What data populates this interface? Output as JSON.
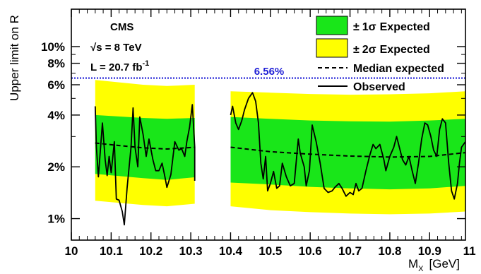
{
  "chart_data": {
    "type": "line",
    "x_axis": {
      "label": "M",
      "label_sub": "X",
      "unit": "[GeV]",
      "range": [
        10.0,
        10.99
      ],
      "ticks": [
        "10",
        "10.1",
        "10.2",
        "10.3",
        "10.4",
        "10.5",
        "10.6",
        "10.7",
        "10.8",
        "10.9",
        "11"
      ],
      "tick_values": [
        10.0,
        10.1,
        10.2,
        10.3,
        10.4,
        10.5,
        10.6,
        10.7,
        10.8,
        10.9,
        11.0
      ]
    },
    "y_axis": {
      "label": "Upper limit on R",
      "scale": "log",
      "range_percent": [
        0.75,
        16.5
      ],
      "ticks": [
        "1%",
        "2%",
        "4%",
        "6%",
        "8%",
        "10%"
      ],
      "tick_values": [
        1,
        2,
        4,
        6,
        8,
        10
      ]
    },
    "text_annotations": {
      "experiment": "CMS",
      "energy_prefix": "√s",
      "energy": " = 8 TeV",
      "lumi": "L  = 20.7 fb",
      "lumi_exp": "-1"
    },
    "reference_line": {
      "label": "6.56%",
      "value_percent": 6.56,
      "color": "#1f1fd6"
    },
    "legend": {
      "position": "top-right",
      "entries": [
        {
          "symbol": "±",
          "sigma": "1σ",
          "text": "Expected",
          "color": "#19e619"
        },
        {
          "symbol": "±",
          "sigma": "2σ",
          "text": "Expected",
          "color": "#ffff00"
        },
        {
          "text": "Median expected",
          "style": "dashed"
        },
        {
          "text": "Observed",
          "style": "solid"
        }
      ]
    },
    "segments": [
      {
        "x_range": [
          10.06,
          10.31
        ],
        "expected_median": [
          [
            10.06,
            2.75
          ],
          [
            10.12,
            2.66
          ],
          [
            10.18,
            2.58
          ],
          [
            10.24,
            2.54
          ],
          [
            10.31,
            2.6
          ]
        ],
        "band_1sigma": [
          [
            10.06,
            1.82,
            4.0
          ],
          [
            10.18,
            1.72,
            3.85
          ],
          [
            10.24,
            1.68,
            3.8
          ],
          [
            10.31,
            1.74,
            3.85
          ]
        ],
        "band_2sigma": [
          [
            10.06,
            1.27,
            6.4
          ],
          [
            10.18,
            1.2,
            6.0
          ],
          [
            10.24,
            1.18,
            5.9
          ],
          [
            10.31,
            1.22,
            6.0
          ]
        ],
        "observed": [
          [
            10.06,
            4.5
          ],
          [
            10.063,
            2.6
          ],
          [
            10.068,
            1.75
          ],
          [
            10.078,
            3.6
          ],
          [
            10.085,
            2.2
          ],
          [
            10.09,
            1.78
          ],
          [
            10.095,
            2.3
          ],
          [
            10.1,
            1.85
          ],
          [
            10.108,
            2.8
          ],
          [
            10.113,
            1.3
          ],
          [
            10.12,
            1.28
          ],
          [
            10.128,
            1.1
          ],
          [
            10.133,
            0.92
          ],
          [
            10.14,
            1.5
          ],
          [
            10.15,
            2.6
          ],
          [
            10.155,
            4.4
          ],
          [
            10.16,
            2.6
          ],
          [
            10.167,
            2.0
          ],
          [
            10.172,
            3.9
          ],
          [
            10.18,
            3.1
          ],
          [
            10.188,
            2.3
          ],
          [
            10.195,
            2.9
          ],
          [
            10.205,
            2.2
          ],
          [
            10.212,
            1.9
          ],
          [
            10.22,
            1.9
          ],
          [
            10.228,
            2.1
          ],
          [
            10.235,
            1.75
          ],
          [
            10.24,
            1.52
          ],
          [
            10.25,
            1.8
          ],
          [
            10.26,
            2.8
          ],
          [
            10.27,
            2.5
          ],
          [
            10.277,
            2.55
          ],
          [
            10.285,
            2.3
          ],
          [
            10.29,
            2.8
          ],
          [
            10.297,
            3.4
          ],
          [
            10.304,
            4.6
          ],
          [
            10.31,
            2.6
          ],
          [
            10.31,
            1.66
          ]
        ]
      },
      {
        "x_range": [
          10.4,
          10.99
        ],
        "expected_median": [
          [
            10.4,
            2.6
          ],
          [
            10.5,
            2.45
          ],
          [
            10.6,
            2.37
          ],
          [
            10.7,
            2.31
          ],
          [
            10.8,
            2.28
          ],
          [
            10.9,
            2.3
          ],
          [
            10.99,
            2.42
          ]
        ],
        "band_1sigma": [
          [
            10.4,
            1.62,
            3.9
          ],
          [
            10.5,
            1.58,
            3.8
          ],
          [
            10.6,
            1.53,
            3.72
          ],
          [
            10.7,
            1.5,
            3.68
          ],
          [
            10.8,
            1.48,
            3.66
          ],
          [
            10.9,
            1.5,
            3.72
          ],
          [
            10.99,
            1.55,
            3.8
          ]
        ],
        "band_2sigma": [
          [
            10.4,
            1.18,
            5.5
          ],
          [
            10.5,
            1.12,
            5.4
          ],
          [
            10.6,
            1.09,
            5.3
          ],
          [
            10.7,
            1.07,
            5.25
          ],
          [
            10.8,
            1.06,
            5.28
          ],
          [
            10.9,
            1.07,
            5.35
          ],
          [
            10.99,
            1.1,
            5.5
          ]
        ],
        "observed": [
          [
            10.4,
            4.0
          ],
          [
            10.405,
            4.5
          ],
          [
            10.413,
            3.6
          ],
          [
            10.42,
            3.3
          ],
          [
            10.428,
            3.7
          ],
          [
            10.435,
            4.3
          ],
          [
            10.445,
            5.0
          ],
          [
            10.455,
            5.4
          ],
          [
            10.463,
            4.8
          ],
          [
            10.47,
            3.6
          ],
          [
            10.476,
            2.1
          ],
          [
            10.482,
            1.7
          ],
          [
            10.488,
            2.3
          ],
          [
            10.493,
            1.45
          ],
          [
            10.5,
            1.6
          ],
          [
            10.508,
            1.88
          ],
          [
            10.516,
            1.5
          ],
          [
            10.523,
            1.55
          ],
          [
            10.53,
            2.1
          ],
          [
            10.54,
            1.75
          ],
          [
            10.55,
            1.55
          ],
          [
            10.56,
            1.6
          ],
          [
            10.57,
            2.9
          ],
          [
            10.575,
            2.4
          ],
          [
            10.585,
            2.0
          ],
          [
            10.59,
            1.55
          ],
          [
            10.598,
            1.9
          ],
          [
            10.605,
            3.5
          ],
          [
            10.615,
            2.8
          ],
          [
            10.625,
            2.1
          ],
          [
            10.635,
            1.5
          ],
          [
            10.645,
            1.42
          ],
          [
            10.655,
            1.45
          ],
          [
            10.662,
            1.52
          ],
          [
            10.672,
            1.6
          ],
          [
            10.68,
            1.5
          ],
          [
            10.69,
            1.35
          ],
          [
            10.7,
            1.42
          ],
          [
            10.708,
            1.38
          ],
          [
            10.715,
            1.6
          ],
          [
            10.722,
            1.45
          ],
          [
            10.73,
            1.5
          ],
          [
            10.74,
            1.9
          ],
          [
            10.75,
            2.35
          ],
          [
            10.758,
            2.7
          ],
          [
            10.765,
            2.55
          ],
          [
            10.775,
            2.7
          ],
          [
            10.785,
            2.2
          ],
          [
            10.79,
            1.9
          ],
          [
            10.8,
            2.3
          ],
          [
            10.81,
            2.6
          ],
          [
            10.817,
            3.0
          ],
          [
            10.824,
            2.6
          ],
          [
            10.832,
            2.2
          ],
          [
            10.84,
            2.05
          ],
          [
            10.848,
            2.3
          ],
          [
            10.856,
            1.9
          ],
          [
            10.864,
            1.6
          ],
          [
            10.872,
            2.1
          ],
          [
            10.88,
            2.9
          ],
          [
            10.888,
            3.6
          ],
          [
            10.895,
            3.5
          ],
          [
            10.903,
            3.0
          ],
          [
            10.91,
            2.5
          ],
          [
            10.918,
            2.3
          ],
          [
            10.925,
            3.3
          ],
          [
            10.932,
            3.8
          ],
          [
            10.94,
            3.6
          ],
          [
            10.948,
            2.1
          ],
          [
            10.955,
            1.45
          ],
          [
            10.962,
            1.3
          ],
          [
            10.97,
            1.6
          ],
          [
            10.975,
            2.1
          ],
          [
            10.98,
            2.6
          ],
          [
            10.99,
            2.8
          ]
        ]
      }
    ]
  }
}
